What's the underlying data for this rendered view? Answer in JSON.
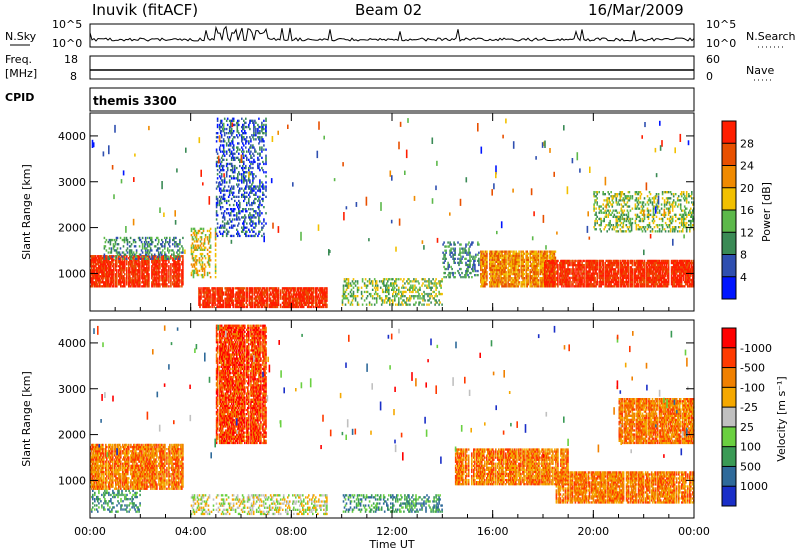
{
  "header": {
    "station": "Inuvik (fitACF)",
    "beam": "Beam 02",
    "date": "16/Mar/2009"
  },
  "panels": {
    "nsky": {
      "left_label": "N.Sky",
      "right_label": "N.Search",
      "ticks_left": [
        "10^5",
        "10^0"
      ],
      "ticks_right": [
        "10^5",
        "10^0"
      ]
    },
    "freq": {
      "left_label_1": "Freq.",
      "left_label_2": "[MHz]",
      "right_label": "Nave",
      "ticks_left": [
        "18",
        "8"
      ],
      "ticks_right": [
        "60",
        "0"
      ]
    },
    "cpid": {
      "label": "CPID",
      "value": "themis 3300"
    }
  },
  "chart_data": [
    {
      "type": "heatmap",
      "title": "",
      "xlabel": "Time UT",
      "ylabel": "Slant Range [km]",
      "x_ticks": [
        "00:00",
        "04:00",
        "08:00",
        "12:00",
        "16:00",
        "20:00",
        "00:00"
      ],
      "x_range_hours": [
        0,
        24
      ],
      "y_ticks": [
        1000,
        2000,
        3000,
        4000
      ],
      "ylim": [
        180,
        4500
      ],
      "colorbar": {
        "label": "Power [dB]",
        "ticks": [
          "4",
          "8",
          "12",
          "16",
          "20",
          "24",
          "28"
        ],
        "colors": [
          "#0015ff",
          "#2f4fb0",
          "#3a8a55",
          "#5cb84a",
          "#f2c000",
          "#f08a00",
          "#e85000",
          "#ff1e00"
        ]
      },
      "regions": [
        {
          "t0": 0.0,
          "t1": 3.7,
          "r0": 700,
          "r1": 1400,
          "level": 7
        },
        {
          "t0": 0.5,
          "t1": 3.7,
          "r0": 1300,
          "r1": 1800,
          "level": 2
        },
        {
          "t0": 4.3,
          "t1": 9.5,
          "r0": 250,
          "r1": 700,
          "level": 7
        },
        {
          "t0": 4.0,
          "t1": 5.0,
          "r0": 900,
          "r1": 2000,
          "level": 4
        },
        {
          "t0": 5.0,
          "t1": 7.0,
          "r0": 1800,
          "r1": 4400,
          "level": 1
        },
        {
          "t0": 10.0,
          "t1": 14.0,
          "r0": 300,
          "r1": 900,
          "level": 3
        },
        {
          "t0": 14.0,
          "t1": 15.5,
          "r0": 900,
          "r1": 1700,
          "level": 2
        },
        {
          "t0": 15.5,
          "t1": 18.5,
          "r0": 700,
          "r1": 1500,
          "level": 5
        },
        {
          "t0": 18.0,
          "t1": 24.0,
          "r0": 700,
          "r1": 1300,
          "level": 7
        },
        {
          "t0": 20.0,
          "t1": 24.0,
          "r0": 1900,
          "r1": 2800,
          "level": 3
        }
      ]
    },
    {
      "type": "heatmap",
      "title": "",
      "xlabel": "Time UT",
      "ylabel": "Slant Range [km]",
      "x_ticks": [
        "00:00",
        "04:00",
        "08:00",
        "12:00",
        "16:00",
        "20:00",
        "00:00"
      ],
      "x_range_hours": [
        0,
        24
      ],
      "y_ticks": [
        1000,
        2000,
        3000,
        4000
      ],
      "ylim": [
        180,
        4500
      ],
      "colorbar": {
        "label": "Velocity [m s⁻¹]",
        "ticks": [
          "1000",
          "500",
          "100",
          "25",
          "-25",
          "-100",
          "-500",
          "-1000"
        ],
        "colors": [
          "#1a2fc8",
          "#2f6a9a",
          "#3a9a55",
          "#6ad040",
          "#c0c0c0",
          "#f5a800",
          "#f08000",
          "#ff3a00",
          "#ff0000"
        ]
      },
      "regions": [
        {
          "t0": 0.0,
          "t1": 3.7,
          "r0": 800,
          "r1": 1800,
          "level": 6
        },
        {
          "t0": 0.0,
          "t1": 2.0,
          "r0": 300,
          "r1": 800,
          "level": 2
        },
        {
          "t0": 4.0,
          "t1": 9.5,
          "r0": 250,
          "r1": 700,
          "level": 4
        },
        {
          "t0": 5.0,
          "t1": 7.0,
          "r0": 1800,
          "r1": 4400,
          "level": 7
        },
        {
          "t0": 10.0,
          "t1": 14.0,
          "r0": 300,
          "r1": 700,
          "level": 2
        },
        {
          "t0": 14.5,
          "t1": 19.0,
          "r0": 900,
          "r1": 1700,
          "level": 6
        },
        {
          "t0": 18.5,
          "t1": 24.0,
          "r0": 500,
          "r1": 1200,
          "level": 6
        },
        {
          "t0": 21.0,
          "t1": 24.0,
          "r0": 1800,
          "r1": 2800,
          "level": 6
        }
      ]
    }
  ]
}
